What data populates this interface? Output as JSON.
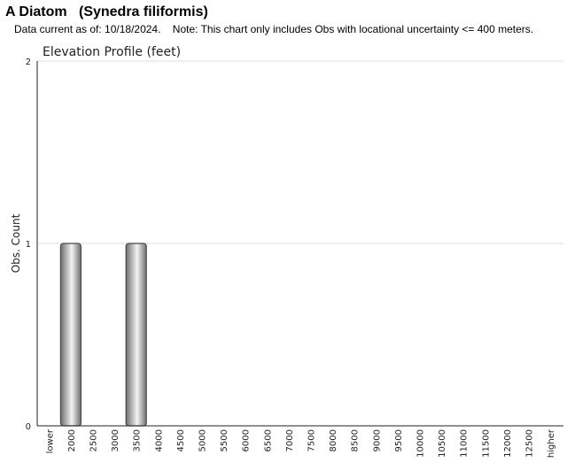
{
  "header": {
    "common_name": "A Diatom",
    "scientific_name": "(Synedra filiformis)",
    "data_current": "Data current as of: 10/18/2024.",
    "note": "Note: This chart only includes Obs with locational uncertainty <= 400 meters."
  },
  "chart_data": {
    "type": "bar",
    "title": "Elevation Profile (feet)",
    "xlabel": "",
    "ylabel": "Obs. Count",
    "categories": [
      "lower",
      "2000",
      "2500",
      "3000",
      "3500",
      "4000",
      "4500",
      "5000",
      "5500",
      "6000",
      "6500",
      "7000",
      "7500",
      "8000",
      "8500",
      "9000",
      "9500",
      "10000",
      "10500",
      "11000",
      "11500",
      "12000",
      "12500",
      "higher"
    ],
    "values": [
      0,
      1,
      0,
      0,
      1,
      0,
      0,
      0,
      0,
      0,
      0,
      0,
      0,
      0,
      0,
      0,
      0,
      0,
      0,
      0,
      0,
      0,
      0,
      0
    ],
    "ylim": [
      0,
      2
    ],
    "yticks": [
      0,
      1,
      2
    ],
    "grid": true,
    "colors": {
      "bar_dark": "#6e6e6e",
      "bar_light": "#f4f4f4",
      "bar_stroke": "#4a4a4a",
      "grid": "#dddddd",
      "axis": "#222222"
    }
  }
}
